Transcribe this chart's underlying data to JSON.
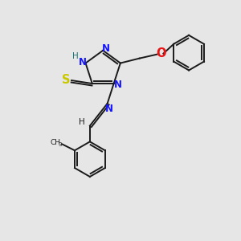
{
  "bg_color": "#e6e6e6",
  "bond_color": "#1a1a1a",
  "atom_colors": {
    "N": "#1414ff",
    "S": "#c8c800",
    "O": "#e81414",
    "H": "#147878",
    "C": "#1a1a1a"
  },
  "figsize": [
    3.0,
    3.0
  ],
  "dpi": 100,
  "lw": 1.4,
  "fs": 8.5
}
